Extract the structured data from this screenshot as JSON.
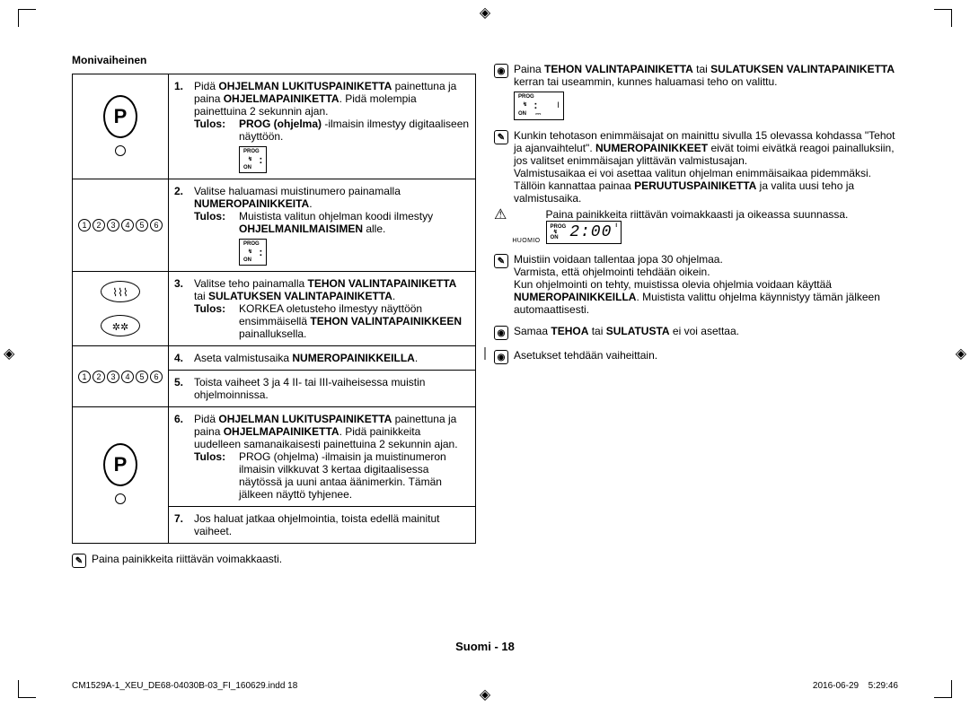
{
  "section_title": "Monivaiheinen",
  "steps": [
    {
      "num": "1.",
      "text": "Pidä <b>OHJELMAN LUKITUSPAINIKETTA</b> painettuna ja paina <b>OHJELMAPAINIKETTA</b>. Pidä molempia painettuina 2 sekunnin ajan.",
      "tulos_label": "Tulos:",
      "tulos": "<b>PROG (ohjelma)</b> -ilmaisin ilmestyy digitaaliseen näyttöön.",
      "show_display": true
    },
    {
      "num": "2.",
      "text": "Valitse haluamasi muistinumero painamalla <b>NUMEROPAINIKKEITA</b>.",
      "tulos_label": "Tulos:",
      "tulos": "Muistista valitun ohjelman koodi ilmestyy <b>OHJELMANILMAISIMEN</b> alle.",
      "show_display": true
    },
    {
      "num": "3.",
      "text": "Valitse teho painamalla <b>TEHON VALINTAPAINIKETTA</b> tai <b>SULATUKSEN VALINTAPAINIKETTA</b>.",
      "tulos_label": "Tulos:",
      "tulos": "KORKEA oletusteho ilmestyy näyttöön ensimmäisellä <b>TEHON VALINTAPAINIKKEEN</b> painalluksella.",
      "show_display": false
    },
    {
      "num": "4.",
      "text": "Aseta valmistusaika <b>NUMEROPAINIKKEILLA</b>.",
      "tulos_label": "",
      "tulos": "",
      "show_display": false
    },
    {
      "num": "5.",
      "text": "Toista vaiheet 3 ja 4 II- tai III-vaiheisessa muistin ohjelmoinnissa.",
      "tulos_label": "",
      "tulos": "",
      "show_display": false
    },
    {
      "num": "6.",
      "text": "Pidä <b>OHJELMAN LUKITUSPAINIKETTA</b> painettuna ja paina <b>OHJELMAPAINIKETTA</b>. Pidä painikkeita uudelleen samanaikaisesti painettuina 2 sekunnin ajan.",
      "tulos_label": "Tulos:",
      "tulos": "PROG (ohjelma) -ilmaisin ja muistinumeron ilmaisin vilkkuvat 3 kertaa digitaalisessa näytössä ja uuni antaa äänimerkin. Tämän jälkeen näyttö tyhjenee.",
      "show_display": false
    },
    {
      "num": "7.",
      "text": "Jos haluat jatkaa ohjelmointia, toista edellä mainitut vaiheet.",
      "tulos_label": "",
      "tulos": "",
      "show_display": false
    }
  ],
  "left_note": "Paina painikkeita riittävän voimakkaasti.",
  "right_notes": [
    {
      "icon": "dot",
      "text": "Paina <b>TEHON VALINTAPAINIKETTA</b> tai <b>SULATUKSEN VALINTAPAINIKETTA</b> kerran tai useammin, kunnes haluamasi teho on valittu.",
      "display_small": true
    },
    {
      "icon": "check",
      "text": "Kunkin tehotason enimmäisajat on mainittu sivulla 15 olevassa kohdassa \"Tehot ja ajanvaihtelut\". <b>NUMEROPAINIKKEET</b> eivät toimi eivätkä reagoi painalluksiin, jos valitset enimmäisajan ylittävän valmistusajan.<br>Valmistusaikaa ei voi asettaa valitun ohjelman enimmäisaikaa pidemmäksi. Tällöin kannattaa painaa <b>PERUUTUSPAINIKETTA</b> ja valita uusi teho ja valmistusaika."
    },
    {
      "icon": "warn",
      "label": "HUOMIO",
      "text": "Paina painikkeita riittävän voimakkaasti ja oikeassa suunnassa.",
      "display_big": true,
      "time": "2:00"
    },
    {
      "icon": "check",
      "text": "Muistiin voidaan tallentaa jopa 30 ohjelmaa.<br>Varmista, että ohjelmointi tehdään oikein.<br>Kun ohjelmointi on tehty, muistissa olevia ohjelmia voidaan käyttää <b>NUMEROPAINIKKEILLA</b>. Muistista valittu ohjelma käynnistyy tämän jälkeen automaattisesti."
    },
    {
      "icon": "dot",
      "text": "Samaa <b>TEHOA</b> tai <b>SULATUSTA</b> ei voi asettaa."
    },
    {
      "icon": "dot",
      "text": "Asetukset tehdään vaiheittain."
    }
  ],
  "page_label_prefix": "Suomi - ",
  "page_number": "18",
  "footer_left": "CM1529A-1_XEU_DE68-04030B-03_FI_160629.indd   18",
  "footer_right": "2016-06-29     5:29:46",
  "numbers": [
    "1",
    "2",
    "3",
    "4",
    "5",
    "6"
  ]
}
